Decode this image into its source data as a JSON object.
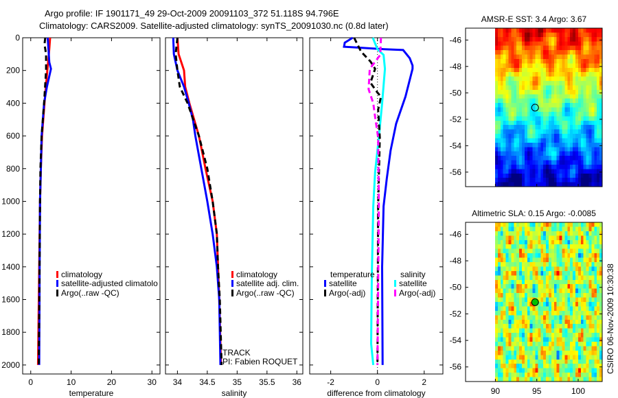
{
  "title": {
    "line1": "Argo profile: IF 1901171_49 29-Oct-2009 20091103_372 51.118S 94.796E",
    "line2": "Climatology: CARS2009. Satellite-adjusted climatology: synTS_20091030.nc (0.8d later)"
  },
  "annotations": {
    "track": "TRACK",
    "pi": "PI: Fabien ROQUET",
    "stamp": "CSIRO 06-Nov-2009 10:30:38"
  },
  "colors": {
    "red": "#ff0000",
    "blue": "#0000ff",
    "black": "#000000",
    "cyan": "#00ffff",
    "magenta": "#ff00ff"
  },
  "chart_data": [
    {
      "type": "line",
      "id": "temperature",
      "xlabel": "temperature",
      "ylabel": "",
      "xlim": [
        -2,
        32
      ],
      "ylim": [
        0,
        2055
      ],
      "y_reversed": true,
      "xticks": [
        0,
        10,
        20,
        30
      ],
      "yticks": [
        0,
        200,
        400,
        600,
        800,
        1000,
        1200,
        1400,
        1600,
        1800,
        2000
      ],
      "legend": {
        "placement": "center-left",
        "entries": [
          "climatology",
          "satellite-adjusted climatolo",
          "Argo(..raw -QC)"
        ]
      },
      "series": [
        {
          "name": "climatology",
          "color": "#ff0000",
          "dash": false,
          "depth": [
            0,
            100,
            200,
            400,
            600,
            800,
            1000,
            1400,
            2000
          ],
          "values": [
            4.8,
            4.5,
            4.1,
            3.4,
            2.8,
            2.5,
            2.3,
            2.1,
            1.8
          ]
        },
        {
          "name": "satellite-adjusted climatology",
          "color": "#0000ff",
          "dash": false,
          "depth": [
            0,
            150,
            190,
            300,
            400,
            600,
            800,
            1000,
            1400,
            2000
          ],
          "values": [
            4.2,
            4.6,
            5.0,
            4.0,
            3.3,
            2.7,
            2.5,
            2.3,
            2.2,
            2.1
          ]
        },
        {
          "name": "Argo(..raw -QC)",
          "color": "#000000",
          "dash": true,
          "depth": [
            0,
            40,
            100,
            200,
            400,
            600,
            800,
            1000,
            2000
          ],
          "values": [
            3.6,
            3.4,
            3.8,
            3.8,
            3.3,
            2.7,
            2.4,
            2.3,
            2.0
          ]
        }
      ]
    },
    {
      "type": "line",
      "id": "salinity",
      "xlabel": "salinity",
      "xlim": [
        33.8,
        36.1
      ],
      "ylim": [
        0,
        2055
      ],
      "y_reversed": true,
      "xticks": [
        34,
        34.5,
        35,
        35.5,
        36
      ],
      "yticks": [],
      "legend": {
        "placement": "center-right",
        "entries": [
          "climatology",
          "satellite adj. clim.",
          "Argo(..raw -QC)"
        ]
      },
      "series": [
        {
          "name": "climatology",
          "color": "#ff0000",
          "dash": false,
          "depth": [
            0,
            100,
            200,
            300,
            400,
            600,
            800,
            1000,
            1200,
            1400,
            1600,
            2000
          ],
          "values": [
            34.0,
            34.02,
            34.11,
            34.13,
            34.2,
            34.36,
            34.47,
            34.59,
            34.66,
            34.68,
            34.7,
            34.73
          ]
        },
        {
          "name": "satellite adj. clim.",
          "color": "#0000ff",
          "dash": false,
          "depth": [
            0,
            100,
            200,
            300,
            400,
            500,
            600,
            800,
            1000,
            1200,
            1400,
            1600,
            2000
          ],
          "values": [
            33.93,
            33.94,
            34.0,
            34.11,
            34.19,
            34.26,
            34.3,
            34.4,
            34.5,
            34.59,
            34.66,
            34.7,
            34.72
          ]
        },
        {
          "name": "Argo(..raw -QC)",
          "color": "#000000",
          "dash": true,
          "depth": [
            0,
            100,
            200,
            300,
            400,
            600,
            800,
            1000,
            1200,
            1400,
            1600,
            2000
          ],
          "values": [
            34.0,
            33.97,
            34.0,
            34.04,
            34.17,
            34.36,
            34.5,
            34.59,
            34.66,
            34.68,
            34.71,
            34.74
          ]
        }
      ]
    },
    {
      "type": "line",
      "id": "difference",
      "xlabel": "difference from climatology",
      "xlim": [
        -2.9,
        2.8
      ],
      "ylim": [
        0,
        2055
      ],
      "y_reversed": true,
      "xticks": [
        -2,
        0,
        2
      ],
      "yticks": [],
      "legend": {
        "placement": "center",
        "temperature_header": "temperature",
        "salinity_header": "salinity",
        "entries": [
          "satellite",
          "Argo(-adj)",
          "satellite",
          "Argo(-adj)"
        ]
      },
      "series": [
        {
          "name": "temperature satellite",
          "color": "#0000ff",
          "dash": false,
          "depth": [
            0,
            30,
            55,
            70,
            75,
            125,
            170,
            190,
            360,
            525,
            690,
            860,
            1030,
            1400,
            2000
          ],
          "values": [
            -1.06,
            -1.4,
            -1.43,
            0.3,
            1.1,
            1.38,
            1.5,
            1.5,
            1.2,
            0.8,
            0.56,
            0.4,
            0.26,
            0.2,
            0.22
          ]
        },
        {
          "name": "salinity satellite",
          "color": "#00ffff",
          "dash": false,
          "depth": [
            0,
            70,
            105,
            190,
            400,
            610,
            820,
            1030,
            1450,
            1870,
            2000
          ],
          "values": [
            -0.2,
            0.0,
            0.26,
            0.32,
            0.2,
            0.06,
            -0.1,
            -0.18,
            -0.24,
            -0.27,
            -0.18
          ]
        },
        {
          "name": "temperature Argo(-adj)",
          "color": "#000000",
          "dash": true,
          "depth": [
            0,
            85,
            145,
            190,
            275,
            335,
            360,
            440,
            610,
            1030,
            2000
          ],
          "values": [
            -1.0,
            -0.7,
            -0.3,
            -0.1,
            -0.3,
            0.0,
            0.15,
            0.03,
            0.1,
            0.03,
            0.0
          ]
        },
        {
          "name": "salinity Argo(-adj)",
          "color": "#ff00ff",
          "dash": true,
          "depth": [
            0,
            105,
            190,
            315,
            400,
            485,
            610,
            1030,
            2000
          ],
          "values": [
            0.15,
            0.12,
            -0.33,
            -0.38,
            -0.18,
            -0.1,
            0.03,
            0.06,
            0.0
          ]
        }
      ]
    },
    {
      "type": "heatmap",
      "id": "sst-map",
      "title": "AMSR-E SST: 3.4 Argo: 3.67",
      "xlim": [
        86.4,
        102.9
      ],
      "ylim": [
        -57.1,
        -45.1
      ],
      "data_lon_range": [
        90,
        103
      ],
      "xticks": [
        90,
        95,
        100
      ],
      "xticklabels_shown": false,
      "yticks": [
        -46,
        -48,
        -50,
        -52,
        -54,
        -56
      ],
      "marker": {
        "lon": 94.796,
        "lat": -51.118
      },
      "colormap": "jet"
    },
    {
      "type": "heatmap",
      "id": "sla-map",
      "title": "Altimetric SLA: 0.15 Argo: -0.0085",
      "xlim": [
        86.4,
        102.9
      ],
      "ylim": [
        -57.1,
        -45.1
      ],
      "data_lon_range": [
        90,
        103
      ],
      "xticks": [
        90,
        95,
        100
      ],
      "xticklabels_shown": true,
      "yticks": [
        -46,
        -48,
        -50,
        -52,
        -54,
        -56
      ],
      "marker": {
        "lon": 94.796,
        "lat": -51.118
      },
      "colormap": "jet"
    }
  ]
}
